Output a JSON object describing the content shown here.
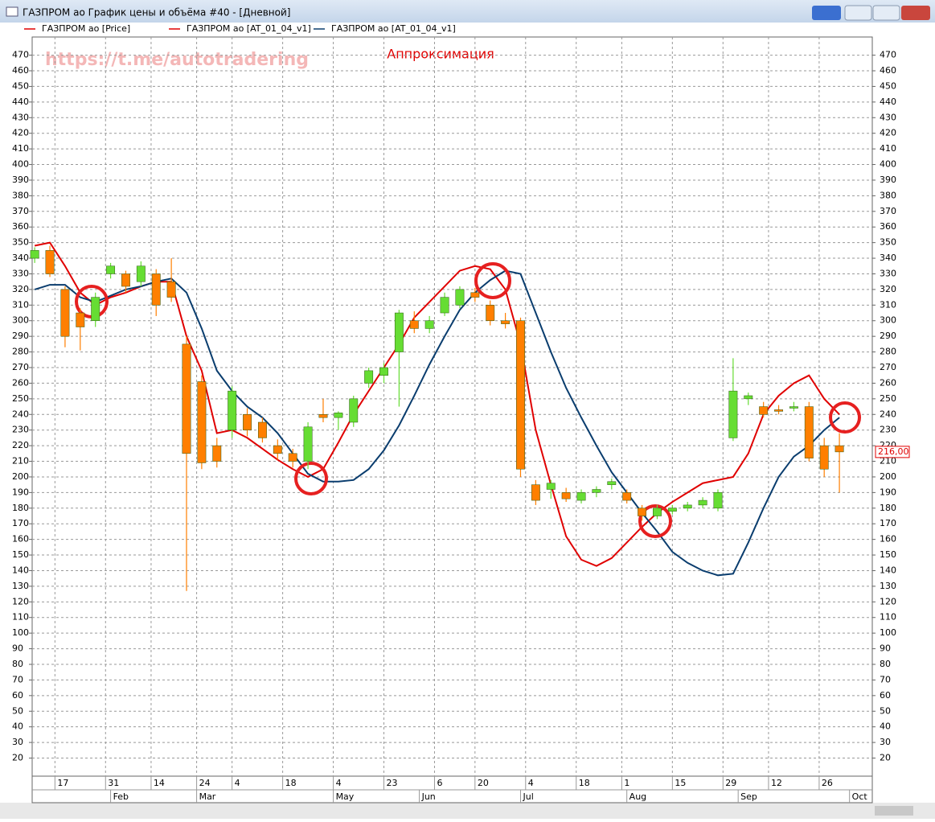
{
  "window": {
    "title": "ГАЗПРОМ ао График цены и объёма #40 - [Дневной]"
  },
  "chart_data": {
    "type": "candlestick",
    "title": "Аппроксимация",
    "watermark": "https://t.me/autotradering",
    "x": [
      0,
      3,
      6,
      9,
      12,
      15,
      18,
      21,
      24,
      27,
      30,
      33,
      36,
      39,
      42,
      45,
      48,
      51,
      54,
      57,
      60,
      63,
      66,
      69,
      72,
      75,
      78,
      81,
      84,
      87,
      90,
      93,
      96,
      99,
      102,
      105,
      108,
      111,
      114,
      117,
      120,
      123,
      126,
      129,
      132,
      135,
      138,
      141,
      144,
      147,
      150,
      153,
      156,
      159
    ],
    "series": [
      {
        "name": "ГАЗПРОМ ао [Price]",
        "color": "#e00000",
        "up_color": "#66dd33",
        "down_color": "#ff7f00",
        "open": [
          340,
          345,
          320,
          305,
          300,
          330,
          330,
          325,
          330,
          325,
          285,
          261,
          220,
          230,
          240,
          235,
          220,
          215,
          210,
          240,
          238,
          235,
          260,
          265,
          280,
          300,
          295,
          305,
          310,
          318,
          310,
          300,
          300,
          195,
          192,
          190,
          185,
          190,
          195,
          190,
          180,
          175,
          178,
          180,
          182,
          180,
          225,
          250,
          245,
          243,
          244,
          245,
          220,
          220
        ],
        "high": [
          347,
          348,
          322,
          308,
          318,
          337,
          332,
          338,
          333,
          340,
          290,
          265,
          225,
          258,
          244,
          238,
          224,
          218,
          235,
          250,
          242,
          252,
          270,
          273,
          307,
          306,
          303,
          318,
          322,
          321,
          313,
          305,
          302,
          198,
          198,
          193,
          192,
          194,
          199,
          192,
          182,
          182,
          182,
          184,
          187,
          192,
          276,
          254,
          248,
          246,
          248,
          248,
          225,
          228
        ],
        "low": [
          337,
          328,
          283,
          281,
          296,
          327,
          318,
          322,
          303,
          312,
          127,
          205,
          206,
          225,
          226,
          222,
          211,
          206,
          205,
          235,
          230,
          232,
          257,
          260,
          245,
          292,
          292,
          303,
          308,
          312,
          297,
          295,
          200,
          182,
          186,
          184,
          183,
          187,
          192,
          183,
          172,
          173,
          176,
          178,
          180,
          178,
          223,
          246,
          238,
          240,
          242,
          210,
          200,
          190
        ],
        "close": [
          345,
          330,
          290,
          296,
          315,
          335,
          322,
          335,
          310,
          315,
          215,
          209,
          210,
          255,
          230,
          225,
          215,
          210,
          232,
          238,
          241,
          250,
          268,
          270,
          305,
          295,
          300,
          315,
          320,
          315,
          300,
          298,
          205,
          185,
          196,
          186,
          190,
          192,
          197,
          185,
          175,
          180,
          180,
          182,
          185,
          190,
          255,
          252,
          240,
          242,
          245,
          212,
          205,
          216
        ]
      },
      {
        "name": "ГАЗПРОМ ао [AT_01_04_v1]",
        "color": "#e00000",
        "values": [
          348,
          350,
          335,
          318,
          310,
          315,
          318,
          322,
          325,
          325,
          290,
          268,
          228,
          230,
          225,
          218,
          211,
          205,
          200,
          205,
          222,
          240,
          255,
          270,
          285,
          302,
          312,
          322,
          332,
          335,
          333,
          320,
          285,
          230,
          195,
          162,
          147,
          143,
          148,
          158,
          168,
          177,
          184,
          190,
          196,
          198,
          200,
          215,
          240,
          252,
          260,
          265,
          250,
          240
        ]
      },
      {
        "name": "ГАЗПРОМ ао [AT_01_04_v1]",
        "color": "#0a3d6e",
        "values": [
          320,
          323,
          323,
          315,
          312,
          316,
          320,
          322,
          325,
          327,
          318,
          295,
          268,
          255,
          245,
          238,
          228,
          215,
          202,
          197,
          197,
          198,
          205,
          217,
          233,
          252,
          272,
          290,
          307,
          318,
          326,
          332,
          330,
          305,
          280,
          257,
          238,
          220,
          203,
          190,
          177,
          165,
          152,
          145,
          140,
          137,
          138,
          158,
          180,
          200,
          213,
          220,
          230,
          238
        ]
      }
    ],
    "xlim": [
      -0.5,
      165.5
    ],
    "ylim": [
      11,
      477
    ],
    "yticks": [
      20,
      30,
      40,
      50,
      60,
      70,
      80,
      90,
      100,
      110,
      120,
      130,
      140,
      150,
      160,
      170,
      180,
      190,
      200,
      210,
      220,
      230,
      240,
      250,
      260,
      270,
      280,
      290,
      300,
      310,
      320,
      330,
      340,
      350,
      360,
      370,
      380,
      390,
      400,
      410,
      420,
      430,
      440,
      450,
      460,
      470
    ],
    "xticks": [
      {
        "value": 4,
        "label": "17"
      },
      {
        "value": 14,
        "label": "31"
      },
      {
        "value": 23,
        "label": "14"
      },
      {
        "value": 32,
        "label": "24"
      },
      {
        "value": 39,
        "label": "4"
      },
      {
        "value": 49,
        "label": "18"
      },
      {
        "value": 59,
        "label": "4"
      },
      {
        "value": 69,
        "label": "23"
      },
      {
        "value": 79,
        "label": "6"
      },
      {
        "value": 87,
        "label": "20"
      },
      {
        "value": 97,
        "label": "4"
      },
      {
        "value": 107,
        "label": "18"
      },
      {
        "value": 116,
        "label": "1"
      },
      {
        "value": 126,
        "label": "15"
      },
      {
        "value": 136,
        "label": "29"
      },
      {
        "value": 145,
        "label": "12"
      },
      {
        "value": 155,
        "label": "26"
      }
    ],
    "xticks_months": [
      {
        "value": 15,
        "label": "Feb"
      },
      {
        "value": 32,
        "label": "Mar"
      },
      {
        "value": 59,
        "label": "May"
      },
      {
        "value": 76,
        "label": "Jun"
      },
      {
        "value": 96,
        "label": "Jul"
      },
      {
        "value": 117,
        "label": "Aug"
      },
      {
        "value": 139,
        "label": "Sep"
      },
      {
        "value": 161,
        "label": "Oct"
      }
    ],
    "last_price": {
      "value": 216,
      "label": "216,00"
    },
    "grid": true
  }
}
